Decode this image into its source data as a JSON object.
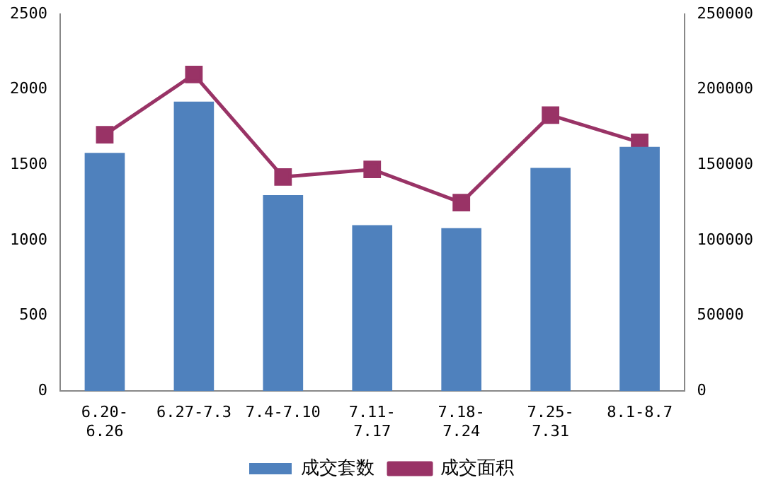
{
  "chart_data": {
    "type": "bar",
    "categories": [
      "6.20-6.26",
      "6.27-7.3",
      "7.4-7.10",
      "7.11-7.17",
      "7.18-7.24",
      "7.25-7.31",
      "8.1-8.7"
    ],
    "series": [
      {
        "name": "成交套数",
        "color": "#4f81bd",
        "values": [
          1580,
          1920,
          1300,
          1100,
          1080,
          1480,
          1620
        ]
      },
      {
        "name": "成交面积",
        "type": "line",
        "axis": "y2",
        "color": "#993366",
        "marker": "square",
        "values": [
          170000,
          210000,
          142000,
          147000,
          125000,
          183000,
          165000
        ]
      }
    ],
    "ylim": [
      0,
      2500
    ],
    "yticks": [
      0,
      500,
      1000,
      1500,
      2000,
      2500
    ],
    "y2lim": [
      0,
      250000
    ],
    "y2ticks": [
      0,
      50000,
      100000,
      150000,
      200000,
      250000
    ],
    "grid": false,
    "legend": "bottom"
  }
}
